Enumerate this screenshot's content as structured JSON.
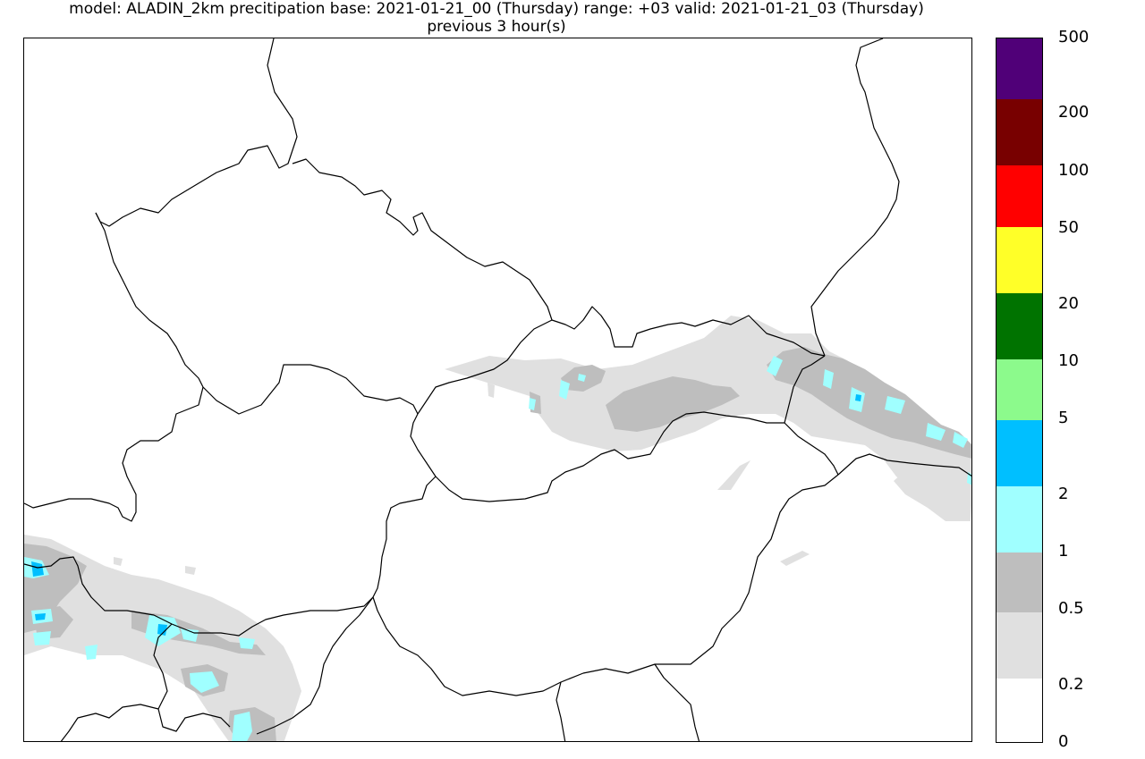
{
  "title": {
    "line1": "model: ALADIN_2km precitipation  base:  2021-01-21_00 (Thursday) range: +03 valid: 2021-01-21_03 (Thursday)",
    "line2": "previous 3 hour(s)"
  },
  "legend": {
    "labels": [
      "500",
      "200",
      "100",
      "50",
      "20",
      "10",
      "5",
      "2",
      "1",
      "0.5",
      "0.2",
      "0"
    ],
    "classes": [
      {
        "from": "0",
        "to": "0.2",
        "color": "#ffffff"
      },
      {
        "from": "0.2",
        "to": "0.5",
        "color": "#e0e0e0"
      },
      {
        "from": "0.5",
        "to": "1",
        "color": "#bebebe"
      },
      {
        "from": "1",
        "to": "2",
        "color": "#a0ffff"
      },
      {
        "from": "2",
        "to": "5",
        "color": "#00bfff"
      },
      {
        "from": "5",
        "to": "10",
        "color": "#8cfa8c"
      },
      {
        "from": "10",
        "to": "20",
        "color": "#007300"
      },
      {
        "from": "20",
        "to": "50",
        "color": "#ffff28"
      },
      {
        "from": "50",
        "to": "100",
        "color": "#ff0000"
      },
      {
        "from": "100",
        "to": "200",
        "color": "#780000"
      },
      {
        "from": "200",
        "to": "500",
        "color": "#500078"
      }
    ]
  },
  "colors": {
    "border_line": "#000000",
    "precip_light": "#e0e0e0",
    "precip_moderate": "#bebebe",
    "precip_cyan": "#a0ffff",
    "precip_blue": "#00bfff"
  }
}
